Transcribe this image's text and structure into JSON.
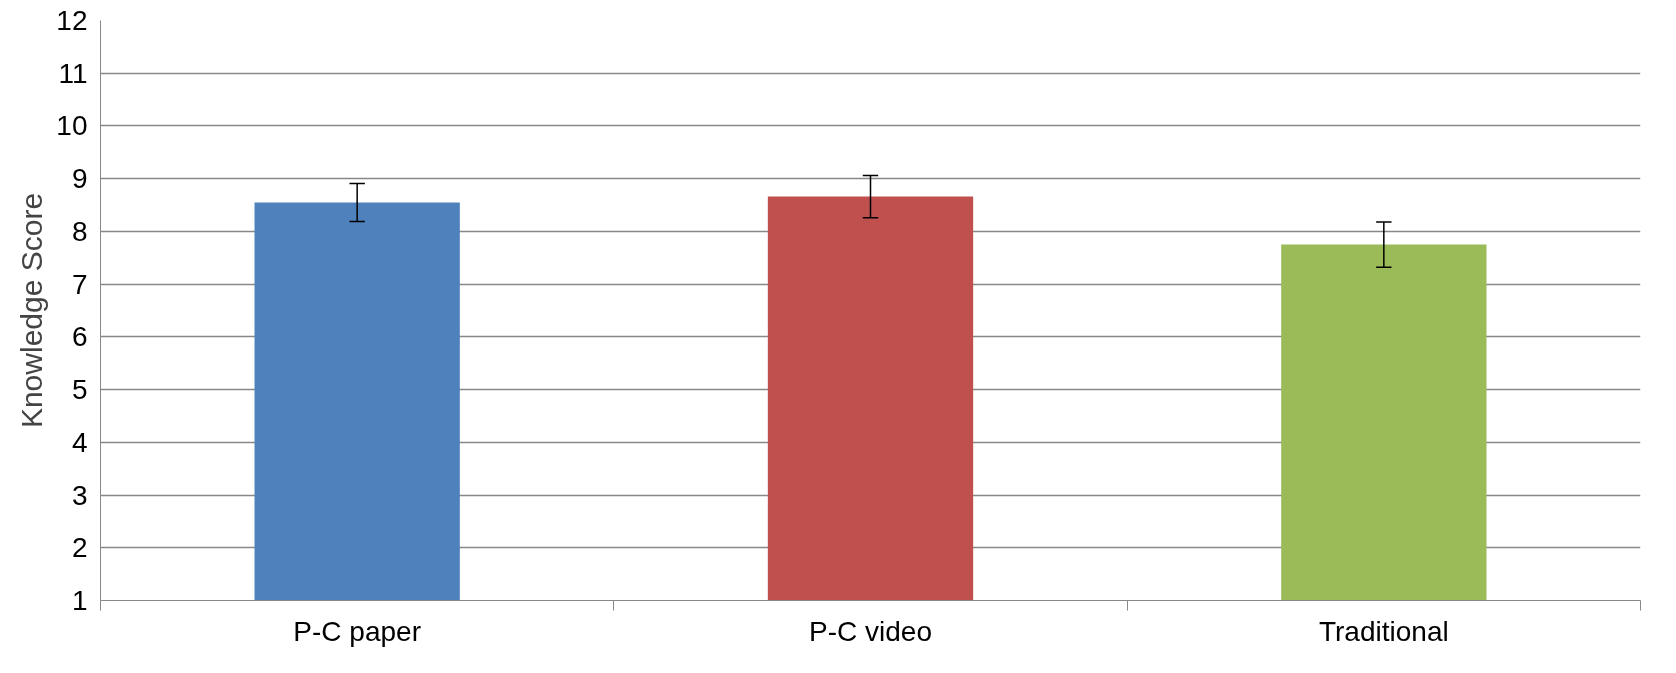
{
  "chart_data": {
    "type": "bar",
    "ylabel": "Knowledge Score",
    "categories": [
      "P-C paper",
      "P-C video",
      "Traditional"
    ],
    "values": [
      8.55,
      8.66,
      7.75
    ],
    "colors": [
      "#4f81bd",
      "#c0504d",
      "#9bbb59"
    ],
    "errors": [
      0.36,
      0.4,
      0.43
    ],
    "ylim": [
      1,
      12
    ],
    "yticks": [
      1,
      2,
      3,
      4,
      5,
      6,
      7,
      8,
      9,
      10,
      11,
      12
    ],
    "grid": "y"
  }
}
